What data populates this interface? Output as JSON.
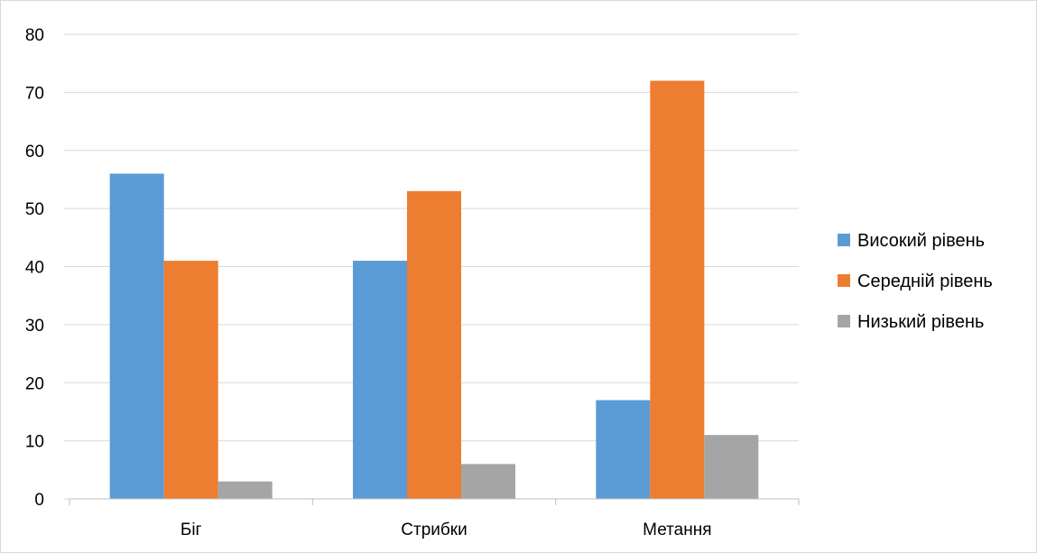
{
  "chart_data": {
    "type": "bar",
    "title": "",
    "xlabel": "",
    "ylabel": "",
    "categories": [
      "Біг",
      "Стрибки",
      "Метання"
    ],
    "series": [
      {
        "name": "Високий рівень",
        "color": "#5B9BD5",
        "values": [
          56,
          41,
          17
        ]
      },
      {
        "name": "Середній рівень",
        "color": "#ED7D31",
        "values": [
          41,
          53,
          72
        ]
      },
      {
        "name": "Низький рівень",
        "color": "#A5A5A5",
        "values": [
          3,
          6,
          11
        ]
      }
    ],
    "ylim": [
      0,
      80
    ],
    "yticks": [
      "0",
      "10",
      "20",
      "30",
      "40",
      "50",
      "60",
      "70",
      "80"
    ],
    "grid": true,
    "legend_position": "right"
  }
}
